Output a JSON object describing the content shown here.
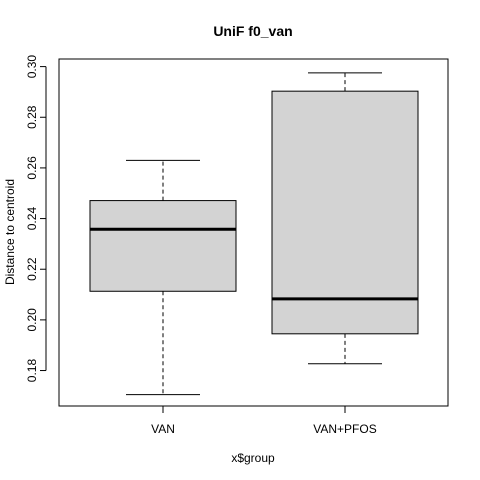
{
  "chart_data": {
    "type": "boxplot",
    "title": "UniF f0_van",
    "xlabel": "x$group",
    "ylabel": "Distance to centroid",
    "categories": [
      "VAN",
      "VAN+PFOS"
    ],
    "y_ticks": [
      "0.18",
      "0.20",
      "0.22",
      "0.24",
      "0.26",
      "0.28",
      "0.30"
    ],
    "y_tick_values": [
      0.18,
      0.2,
      0.22,
      0.24,
      0.26,
      0.28,
      0.3
    ],
    "ylim": [
      0.166,
      0.303
    ],
    "grid": false,
    "box_color": "#d3d3d3",
    "boxes": [
      {
        "name": "VAN",
        "whisker_low": 0.1705,
        "q1": 0.2113,
        "median": 0.2358,
        "q3": 0.2471,
        "whisker_high": 0.263
      },
      {
        "name": "VAN+PFOS",
        "whisker_low": 0.1827,
        "q1": 0.1945,
        "median": 0.2083,
        "q3": 0.2903,
        "whisker_high": 0.2975
      }
    ]
  }
}
